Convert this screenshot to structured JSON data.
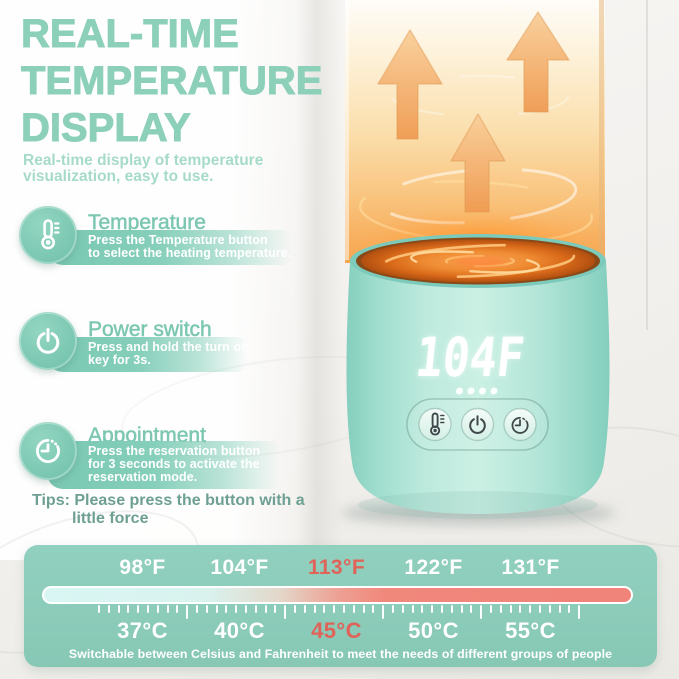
{
  "header": {
    "title_lines": [
      "REAL-TIME",
      "TEMPERATURE",
      "DISPLAY"
    ],
    "subtitle_lines": [
      "Real-time display of temperature",
      "visualization, easy to use."
    ]
  },
  "features": [
    {
      "icon": "thermometer-icon",
      "title": "Temperature",
      "desc_lines": [
        "Press the Temperature button",
        "to select the heating temperature."
      ]
    },
    {
      "icon": "power-icon",
      "title": "Power switch",
      "desc_lines": [
        "Press and hold the turn on",
        "key for 3s."
      ]
    },
    {
      "icon": "clock-icon",
      "title": "Appointment",
      "desc_lines": [
        "Press the reservation button",
        "for 3 seconds to activate the",
        "reservation mode."
      ]
    }
  ],
  "tips": {
    "lines": [
      "Tips: Please press the button with a",
      "little force"
    ]
  },
  "device": {
    "display_value": "104F",
    "button_icons": [
      "thermometer",
      "power",
      "timer"
    ]
  },
  "scale": {
    "fahrenheit_labels": [
      "98°F",
      "104°F",
      "113°F",
      "122°F",
      "131°F"
    ],
    "celsius_labels": [
      "37°C",
      "40°C",
      "45°C",
      "50°C",
      "55°C"
    ],
    "highlight_index": 2,
    "caption": "Switchable between Celsius and Fahrenheit to meet the needs of different groups of people"
  },
  "colors": {
    "accent_teal": "#8dd0ba",
    "panel_teal": "#8ccbb9",
    "highlight_red": "#e0635a",
    "scale_cold": "#d9f6f4",
    "scale_hot": "#f0837a",
    "device_mint": "#a8e3d7",
    "heat_orange": "#f5a95c"
  }
}
